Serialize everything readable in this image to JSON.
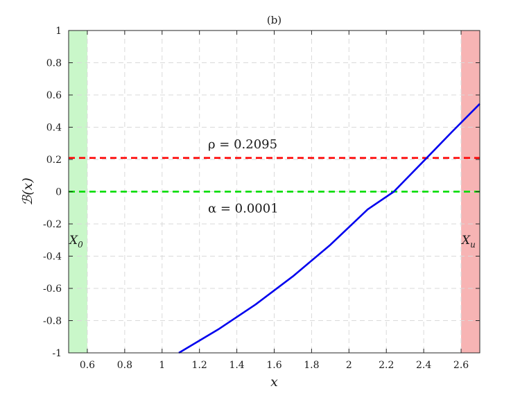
{
  "chart_data": {
    "type": "line",
    "title": "(b)",
    "xlabel": "x",
    "ylabel": "ℬ(x)",
    "xlim": [
      0.5,
      2.7
    ],
    "ylim": [
      -1,
      1
    ],
    "grid": true,
    "x_ticks": [
      0.6,
      0.8,
      1,
      1.2,
      1.4,
      1.6,
      1.8,
      2,
      2.2,
      2.4,
      2.6
    ],
    "x_tick_labels": [
      "0.6",
      "0.8",
      "1",
      "1.2",
      "1.4",
      "1.6",
      "1.8",
      "2",
      "2.2",
      "2.4",
      "2.6"
    ],
    "y_ticks": [
      -1,
      -0.8,
      -0.6,
      -0.4,
      -0.2,
      0,
      0.2,
      0.4,
      0.6,
      0.8,
      1
    ],
    "y_tick_labels": [
      "-1",
      "-0.8",
      "-0.6",
      "-0.4",
      "-0.2",
      "0",
      "0.2",
      "0.4",
      "0.6",
      "0.8",
      "1"
    ],
    "series": [
      {
        "style": "solid",
        "color": "#0000ee",
        "x": [
          1.09,
          1.3,
          1.5,
          1.7,
          1.9,
          2.1,
          2.24,
          2.4,
          2.55,
          2.7
        ],
        "y": [
          -1.0,
          -0.855,
          -0.7,
          -0.525,
          -0.33,
          -0.11,
          0.0,
          0.19,
          0.37,
          0.545
        ]
      }
    ],
    "horizontal_lines": [
      {
        "y": 0.2095,
        "color": "#ff0000",
        "style": "dashed",
        "label": "ρ = 0.2095"
      },
      {
        "y": 0.0001,
        "color": "#00dd00",
        "style": "dashed",
        "label": "α = 0.0001"
      }
    ],
    "regions": [
      {
        "x": [
          0.5,
          0.6
        ],
        "color": "#c9f7c9",
        "label_main": "X",
        "label_sub": "0"
      },
      {
        "x": [
          2.6,
          2.7
        ],
        "color": "#f7b4b4",
        "label_main": "X",
        "label_sub": "u"
      }
    ]
  }
}
